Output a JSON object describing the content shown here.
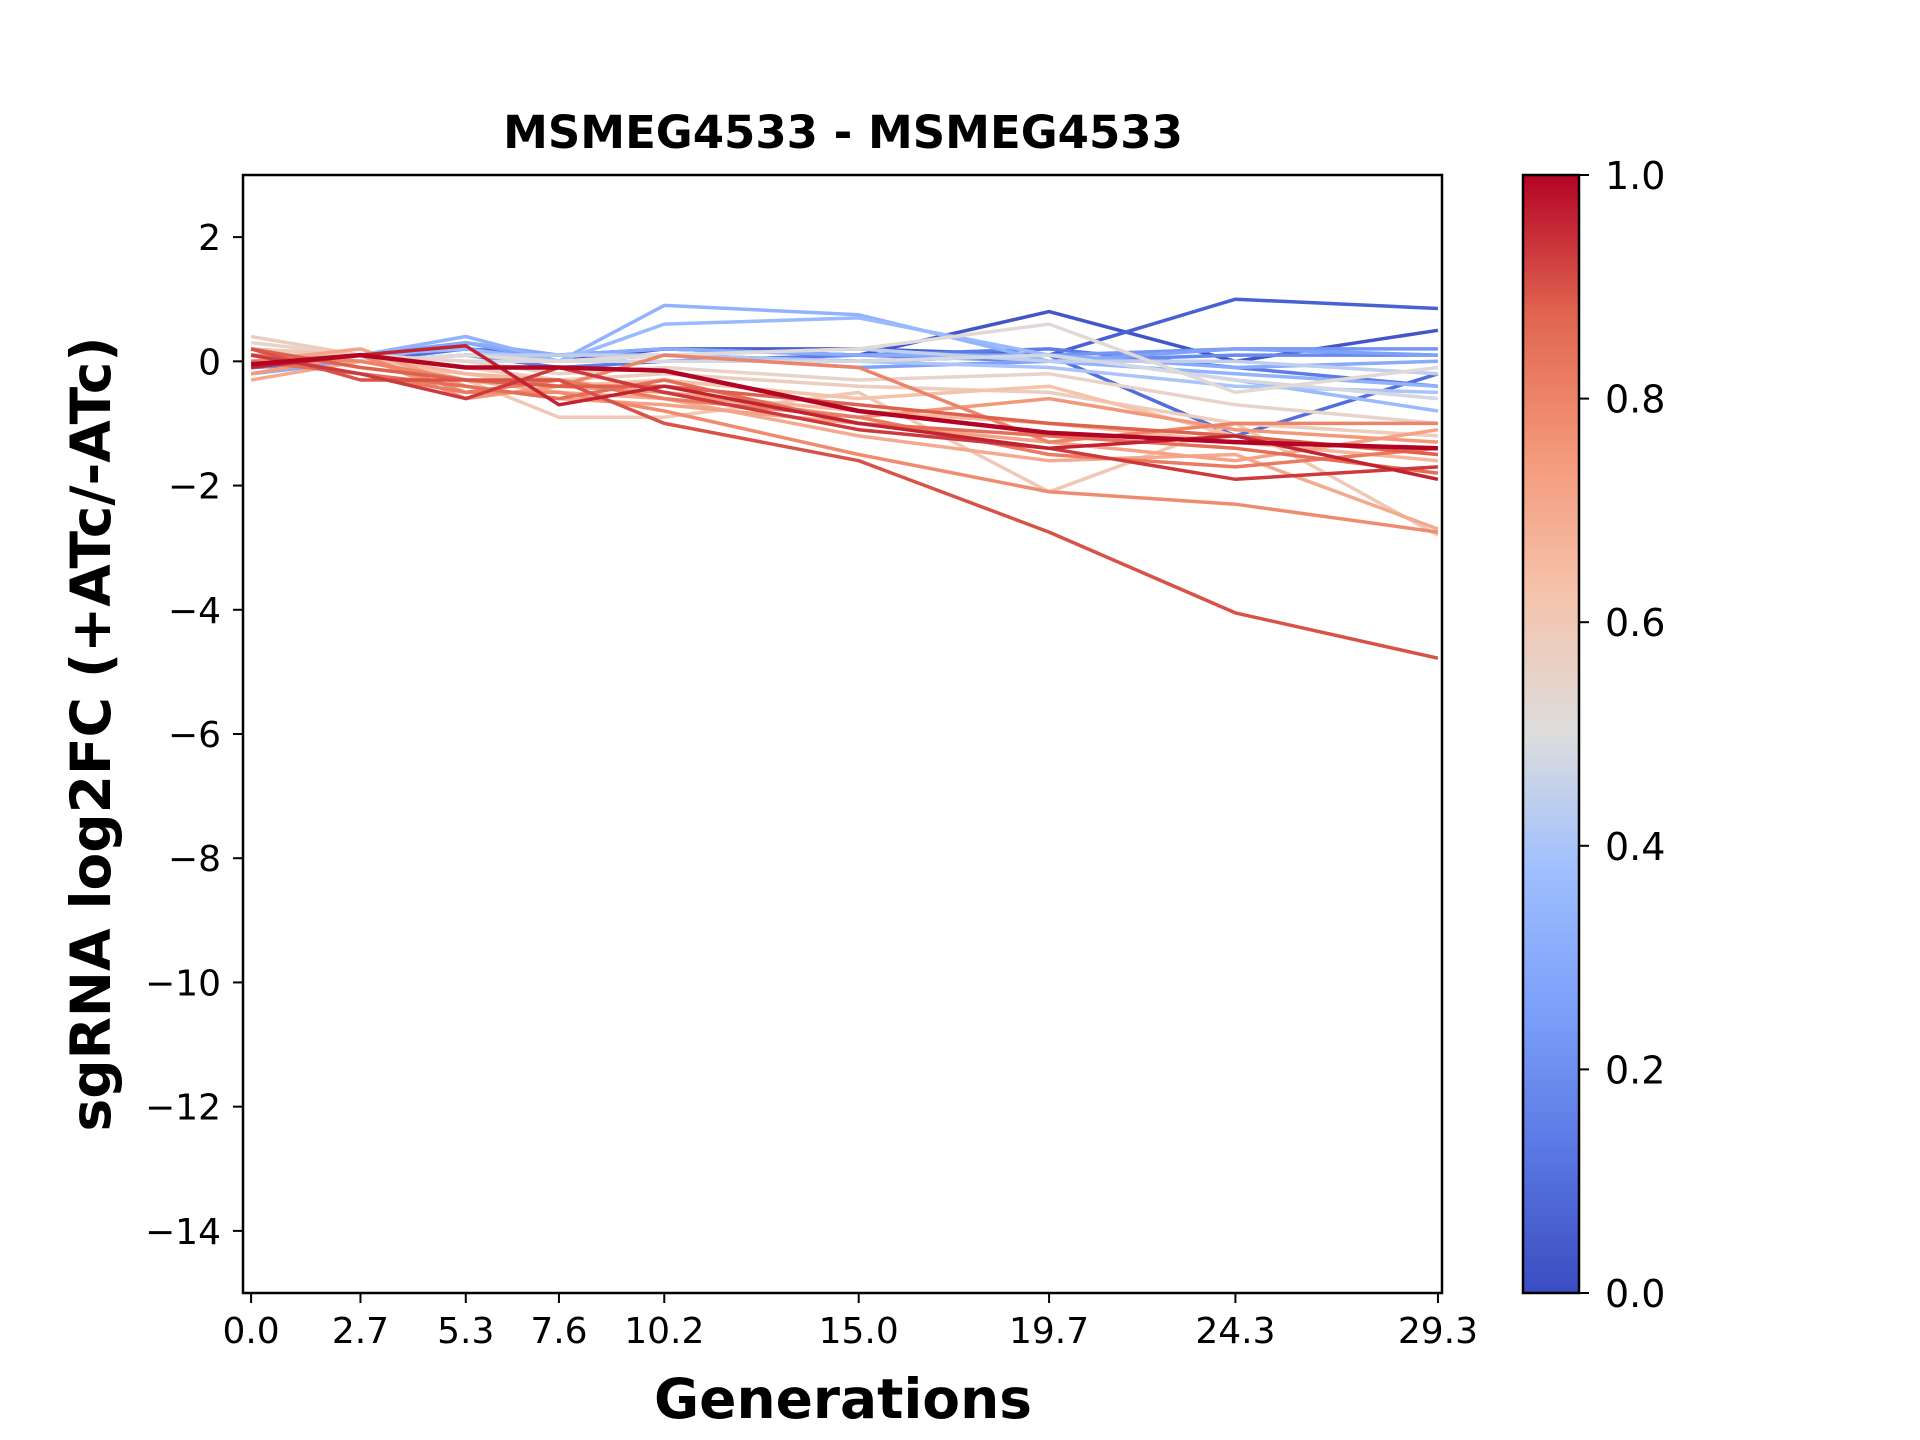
{
  "chart_data": {
    "type": "line",
    "title": "MSMEG4533 - MSMEG4533",
    "xlabel": "Generations",
    "ylabel": "sgRNA log2FC (+ATc/-ATc)",
    "x": [
      0.0,
      2.7,
      5.3,
      7.6,
      10.2,
      15.0,
      19.7,
      24.3,
      29.3
    ],
    "x_tick_labels": [
      "0.0",
      "2.7",
      "5.3",
      "7.6",
      "10.2",
      "15.0",
      "19.7",
      "24.3",
      "29.3"
    ],
    "xlim": [
      -0.2,
      29.4
    ],
    "ylim": [
      -15,
      3
    ],
    "y_ticks": [
      2,
      0,
      -2,
      -4,
      -6,
      -8,
      -10,
      -12,
      -14
    ],
    "y_tick_labels": [
      "2",
      "0",
      "−2",
      "−4",
      "−6",
      "−8",
      "−10",
      "−12",
      "−14"
    ],
    "grid": false,
    "colorbar": {
      "colormap": "coolwarm",
      "range": [
        0.0,
        1.0
      ],
      "ticks": [
        0.0,
        0.2,
        0.4,
        0.6,
        0.8,
        1.0
      ],
      "tick_labels": [
        "0.0",
        "0.2",
        "0.4",
        "0.6",
        "0.8",
        "1.0"
      ],
      "low_color": "#3b4cc0",
      "mid_color": "#dddddd",
      "high_color": "#b40426"
    },
    "series": [
      {
        "c": 0.03,
        "values": [
          -0.1,
          0.0,
          0.1,
          0.0,
          0.2,
          0.1,
          0.8,
          0.0,
          0.5
        ]
      },
      {
        "c": 0.06,
        "values": [
          0.0,
          0.1,
          0.2,
          0.1,
          0.2,
          0.2,
          0.1,
          1.0,
          0.85
        ]
      },
      {
        "c": 0.1,
        "values": [
          -0.1,
          0.0,
          0.2,
          0.0,
          0.1,
          0.0,
          0.1,
          -1.2,
          -0.2
        ]
      },
      {
        "c": 0.14,
        "values": [
          0.1,
          0.0,
          0.1,
          -0.1,
          0.0,
          0.1,
          0.2,
          -0.1,
          -0.4
        ]
      },
      {
        "c": 0.18,
        "values": [
          -0.1,
          0.0,
          0.1,
          0.1,
          0.2,
          0.1,
          0.0,
          0.1,
          0.1
        ]
      },
      {
        "c": 0.22,
        "values": [
          0.0,
          0.1,
          0.2,
          0.0,
          0.1,
          0.0,
          0.1,
          0.2,
          0.2
        ]
      },
      {
        "c": 0.26,
        "values": [
          0.1,
          0.1,
          0.3,
          0.0,
          0.1,
          -0.1,
          0.0,
          0.2,
          0.1
        ]
      },
      {
        "c": 0.3,
        "values": [
          -0.2,
          0.0,
          0.3,
          0.1,
          0.2,
          0.1,
          0.1,
          -0.1,
          0.0
        ]
      },
      {
        "c": 0.33,
        "values": [
          -0.1,
          0.1,
          0.4,
          0.0,
          0.9,
          0.75,
          0.0,
          -0.2,
          -0.4
        ]
      },
      {
        "c": 0.36,
        "values": [
          0.0,
          0.1,
          0.2,
          0.0,
          0.6,
          0.7,
          0.1,
          -0.3,
          -0.8
        ]
      },
      {
        "c": 0.4,
        "values": [
          0.1,
          0.0,
          0.1,
          0.0,
          0.1,
          0.0,
          -0.1,
          -0.4,
          -0.5
        ]
      },
      {
        "c": 0.44,
        "values": [
          0.0,
          0.0,
          0.1,
          0.1,
          0.1,
          0.2,
          0.0,
          0.0,
          -0.2
        ]
      },
      {
        "c": 0.48,
        "values": [
          0.1,
          0.1,
          0.0,
          0.0,
          0.0,
          0.0,
          0.1,
          -0.3,
          -0.6
        ]
      },
      {
        "c": 0.52,
        "values": [
          0.2,
          0.0,
          0.1,
          0.0,
          0.1,
          0.2,
          0.6,
          -0.5,
          -0.1
        ]
      },
      {
        "c": 0.55,
        "values": [
          0.3,
          0.1,
          0.0,
          -0.2,
          -0.1,
          -0.3,
          -0.2,
          -0.7,
          -1.0
        ]
      },
      {
        "c": 0.58,
        "values": [
          0.4,
          0.1,
          -0.1,
          -0.3,
          -0.2,
          -0.4,
          -0.5,
          -1.0,
          -1.2
        ]
      },
      {
        "c": 0.6,
        "values": [
          0.2,
          0.1,
          -0.3,
          -0.9,
          -0.9,
          -0.5,
          -2.1,
          -1.0,
          -2.8
        ]
      },
      {
        "c": 0.63,
        "values": [
          0.1,
          0.0,
          -0.2,
          -0.4,
          -0.3,
          -0.6,
          -0.4,
          -1.2,
          -1.5
        ]
      },
      {
        "c": 0.66,
        "values": [
          -0.1,
          0.1,
          -0.2,
          -0.3,
          -0.5,
          -0.8,
          -1.0,
          -1.3,
          -1.6
        ]
      },
      {
        "c": 0.7,
        "values": [
          -0.3,
          0.0,
          -0.3,
          -0.5,
          -0.6,
          -1.2,
          -1.6,
          -1.5,
          -2.7
        ]
      },
      {
        "c": 0.72,
        "values": [
          0.0,
          0.2,
          -0.4,
          -0.6,
          -0.7,
          -1.0,
          -1.3,
          -1.6,
          -1.1
        ]
      },
      {
        "c": 0.75,
        "values": [
          -0.2,
          0.1,
          -0.6,
          -0.4,
          -0.5,
          -0.9,
          -0.6,
          -1.1,
          -1.3
        ]
      },
      {
        "c": 0.78,
        "values": [
          0.0,
          0.1,
          -0.5,
          -0.5,
          -0.8,
          -1.5,
          -2.1,
          -2.3,
          -2.75
        ]
      },
      {
        "c": 0.8,
        "values": [
          0.1,
          0.0,
          -0.3,
          -0.4,
          0.1,
          -0.1,
          -1.3,
          -1.0,
          -1.0
        ]
      },
      {
        "c": 0.82,
        "values": [
          0.1,
          -0.2,
          -0.5,
          -0.3,
          -0.6,
          -0.9,
          -1.5,
          -1.7,
          -1.4
        ]
      },
      {
        "c": 0.85,
        "values": [
          0.0,
          -0.2,
          -0.4,
          -0.6,
          -0.3,
          -1.0,
          -1.2,
          -1.4,
          -1.8
        ]
      },
      {
        "c": 0.88,
        "values": [
          0.2,
          -0.1,
          -0.3,
          -0.4,
          -0.4,
          -0.7,
          -1.0,
          -1.2,
          -1.5
        ]
      },
      {
        "c": 0.9,
        "values": [
          0.2,
          -0.3,
          -0.3,
          -0.3,
          -1.0,
          -1.6,
          -2.75,
          -4.05,
          -4.78
        ]
      },
      {
        "c": 0.93,
        "values": [
          0.1,
          -0.2,
          -0.6,
          -0.1,
          -0.5,
          -1.1,
          -1.4,
          -1.9,
          -1.7
        ]
      },
      {
        "c": 0.96,
        "values": [
          -0.1,
          0.1,
          0.25,
          -0.7,
          -0.4,
          -1.0,
          -1.4,
          -1.2,
          -1.9
        ]
      },
      {
        "c": 1.0,
        "values": [
          -0.05,
          0.1,
          -0.1,
          -0.1,
          -0.15,
          -0.8,
          -1.15,
          -1.3,
          -1.4
        ]
      }
    ]
  }
}
